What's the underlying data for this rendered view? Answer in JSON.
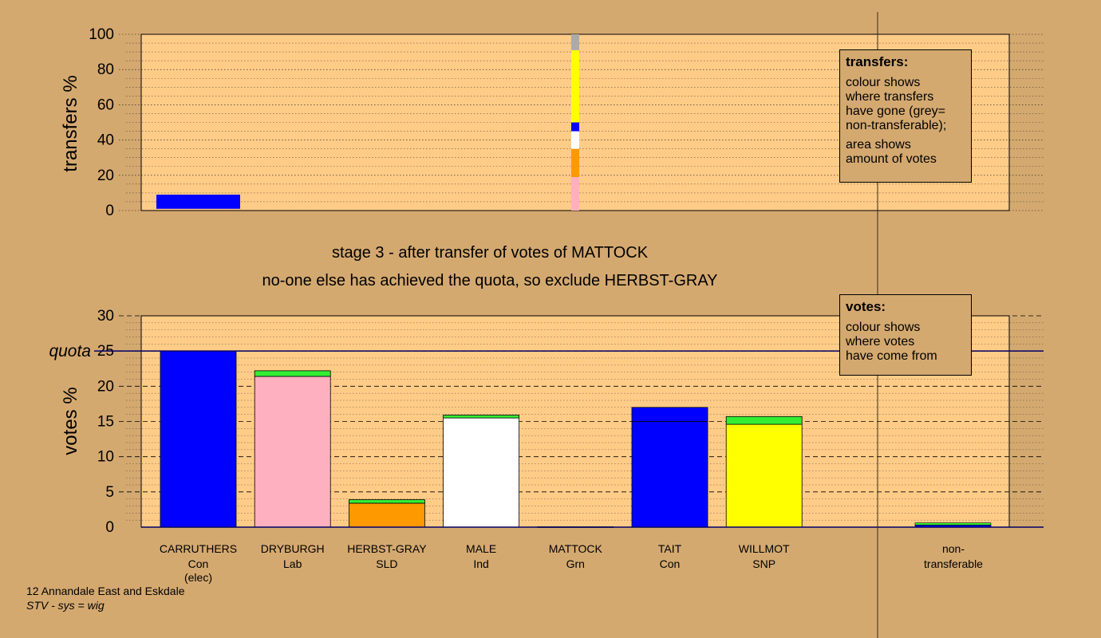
{
  "stage_title": "stage 3 - after transfer of votes of MATTOCK",
  "stage_subtitle": "no-one else has achieved the quota, so exclude HERBST-GRAY",
  "footer": {
    "line1": "12 Annandale East and Eskdale",
    "line2": "STV - sys = wig"
  },
  "colors": {
    "background": "#d4a970",
    "plot_bg": "#ffcc88",
    "Con": "#0000ff",
    "Lab": "#ffb0c0",
    "SLD": "#ff9900",
    "Ind": "#ffffff",
    "Grn": "#33ee33",
    "SNP": "#ffff00",
    "non_transferable": "#aaaaaa"
  },
  "legend_transfers": {
    "title": "transfers:",
    "body1": "colour shows\nwhere transfers\nhave gone (grey=\nnon-transferable);",
    "body2": "area shows\namount of votes"
  },
  "legend_votes": {
    "title": "votes:",
    "body1": "colour shows\nwhere votes\nhave come from"
  },
  "chart_data": [
    {
      "type": "bar",
      "name": "transfers",
      "ylabel": "transfers %",
      "ylim": [
        0,
        100
      ],
      "yticks": [
        0,
        20,
        40,
        60,
        80,
        100
      ],
      "grid": true,
      "recipient_bar": {
        "candidate": "CARRUTHERS",
        "segments": [
          {
            "party": "Con",
            "from": 1,
            "to": 9
          }
        ]
      },
      "transfer_column": {
        "candidate": "MATTOCK",
        "segments": [
          {
            "party": "Lab",
            "from": 0,
            "to": 19
          },
          {
            "party": "SLD",
            "from": 19,
            "to": 35
          },
          {
            "party": "Ind",
            "from": 35,
            "to": 45
          },
          {
            "party": "Con",
            "from": 45,
            "to": 50
          },
          {
            "party": "SNP",
            "from": 50,
            "to": 91
          },
          {
            "party": "non_transferable",
            "from": 91,
            "to": 100
          }
        ]
      }
    },
    {
      "type": "bar",
      "name": "votes",
      "ylabel": "votes %",
      "ylim": [
        0,
        30
      ],
      "yticks": [
        0,
        5,
        10,
        15,
        20,
        25,
        30
      ],
      "quota": 25,
      "quota_label": "quota",
      "grid": true,
      "candidates": [
        {
          "name": "CARRUTHERS",
          "party": "Con",
          "note": "(elec)",
          "segments": [
            {
              "party": "Con",
              "value": 25.0
            }
          ]
        },
        {
          "name": "DRYBURGH",
          "party": "Lab",
          "note": "",
          "segments": [
            {
              "party": "Lab",
              "value": 21.4
            },
            {
              "party": "Grn",
              "value": 0.8
            }
          ]
        },
        {
          "name": "HERBST-GRAY",
          "party": "SLD",
          "note": "",
          "segments": [
            {
              "party": "SLD",
              "value": 3.4
            },
            {
              "party": "Grn",
              "value": 0.5
            }
          ]
        },
        {
          "name": "MALE",
          "party": "Ind",
          "note": "",
          "segments": [
            {
              "party": "Ind",
              "value": 15.5
            },
            {
              "party": "Grn",
              "value": 0.4
            }
          ]
        },
        {
          "name": "MATTOCK",
          "party": "Grn",
          "note": "",
          "segments": [
            {
              "party": "Grn",
              "value": 0.05
            }
          ]
        },
        {
          "name": "TAIT",
          "party": "Con",
          "note": "",
          "segments": [
            {
              "party": "Con",
              "value": 15.0
            },
            {
              "party": "Con",
              "value": 2.0
            }
          ]
        },
        {
          "name": "WILLMOT",
          "party": "SNP",
          "note": "",
          "segments": [
            {
              "party": "SNP",
              "value": 14.6
            },
            {
              "party": "Grn",
              "value": 1.1
            }
          ]
        }
      ],
      "non_transferable": {
        "label_line1": "non-",
        "label_line2": "transferable",
        "segments": [
          {
            "party": "Con",
            "value": 0.3
          },
          {
            "party": "Grn",
            "value": 0.3
          }
        ]
      }
    }
  ]
}
